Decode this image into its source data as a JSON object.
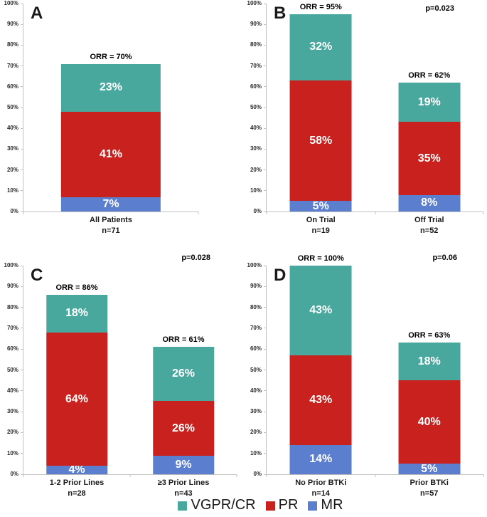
{
  "figure": {
    "background": "#ffffff"
  },
  "colors": {
    "axis_line": "#BFBFBF",
    "tick_text": "#262626",
    "label_text": "#000000",
    "segment_text": "#ffffff"
  },
  "series_colors": {
    "VGPR/CR": "#48A89E",
    "PR": "#C9211D",
    "MR": "#5B7ECE"
  },
  "legend": {
    "items": [
      {
        "label": "VGPR/CR",
        "color": "#48A89E"
      },
      {
        "label": "PR",
        "color": "#C9211D"
      },
      {
        "label": "MR",
        "color": "#5B7ECE"
      }
    ]
  },
  "chart_data": [
    {
      "type": "bar",
      "stacked": true,
      "panel_label": "A",
      "p_value": "",
      "ylim": [
        0,
        100
      ],
      "ytick_step": 10,
      "ytick_labels": [
        "0%",
        "10%",
        "20%",
        "30%",
        "40%",
        "50%",
        "60%",
        "70%",
        "80%",
        "90%",
        "100%"
      ],
      "grid": false,
      "series": [
        "MR",
        "PR",
        "VGPR/CR"
      ],
      "bars": [
        {
          "category": "All Patients",
          "n_label": "n=71",
          "orr_label": "ORR = 70%",
          "segments": {
            "MR": 7,
            "PR": 41,
            "VGPR/CR": 23
          },
          "total": 71
        }
      ]
    },
    {
      "type": "bar",
      "stacked": true,
      "panel_label": "B",
      "p_value": "p=0.023",
      "ylim": [
        0,
        100
      ],
      "ytick_step": 10,
      "ytick_labels": [
        "0%",
        "10%",
        "20%",
        "30%",
        "40%",
        "50%",
        "60%",
        "70%",
        "80%",
        "90%",
        "100%"
      ],
      "grid": false,
      "series": [
        "MR",
        "PR",
        "VGPR/CR"
      ],
      "bars": [
        {
          "category": "On Trial",
          "n_label": "n=19",
          "orr_label": "ORR = 95%",
          "segments": {
            "MR": 5,
            "PR": 58,
            "VGPR/CR": 32
          },
          "total": 95
        },
        {
          "category": "Off Trial",
          "n_label": "n=52",
          "orr_label": "ORR = 62%",
          "segments": {
            "MR": 8,
            "PR": 35,
            "VGPR/CR": 19
          },
          "total": 62
        }
      ]
    },
    {
      "type": "bar",
      "stacked": true,
      "panel_label": "C",
      "p_value": "p=0.028",
      "ylim": [
        0,
        100
      ],
      "ytick_step": 10,
      "ytick_labels": [
        "0%",
        "10%",
        "20%",
        "30%",
        "40%",
        "50%",
        "60%",
        "70%",
        "80%",
        "90%",
        "100%"
      ],
      "grid": false,
      "series": [
        "MR",
        "PR",
        "VGPR/CR"
      ],
      "bars": [
        {
          "category": "1-2 Prior Lines",
          "n_label": "n=28",
          "orr_label": "ORR = 86%",
          "segments": {
            "MR": 4,
            "PR": 64,
            "VGPR/CR": 18
          },
          "total": 86
        },
        {
          "category": "≥3 Prior Lines",
          "n_label": "n=43",
          "orr_label": "ORR = 61%",
          "segments": {
            "MR": 9,
            "PR": 26,
            "VGPR/CR": 26
          },
          "total": 61
        }
      ]
    },
    {
      "type": "bar",
      "stacked": true,
      "panel_label": "D",
      "p_value": "p=0.06",
      "ylim": [
        0,
        100
      ],
      "ytick_step": 10,
      "ytick_labels": [
        "0%",
        "10%",
        "20%",
        "30%",
        "40%",
        "50%",
        "60%",
        "70%",
        "80%",
        "90%",
        "100%"
      ],
      "grid": false,
      "series": [
        "MR",
        "PR",
        "VGPR/CR"
      ],
      "bars": [
        {
          "category": "No Prior BTKi",
          "n_label": "n=14",
          "orr_label": "ORR = 100%",
          "segments": {
            "MR": 14,
            "PR": 43,
            "VGPR/CR": 43
          },
          "total": 100
        },
        {
          "category": "Prior BTKi",
          "n_label": "n=57",
          "orr_label": "ORR = 63%",
          "segments": {
            "MR": 5,
            "PR": 40,
            "VGPR/CR": 18
          },
          "total": 63
        }
      ]
    }
  ]
}
